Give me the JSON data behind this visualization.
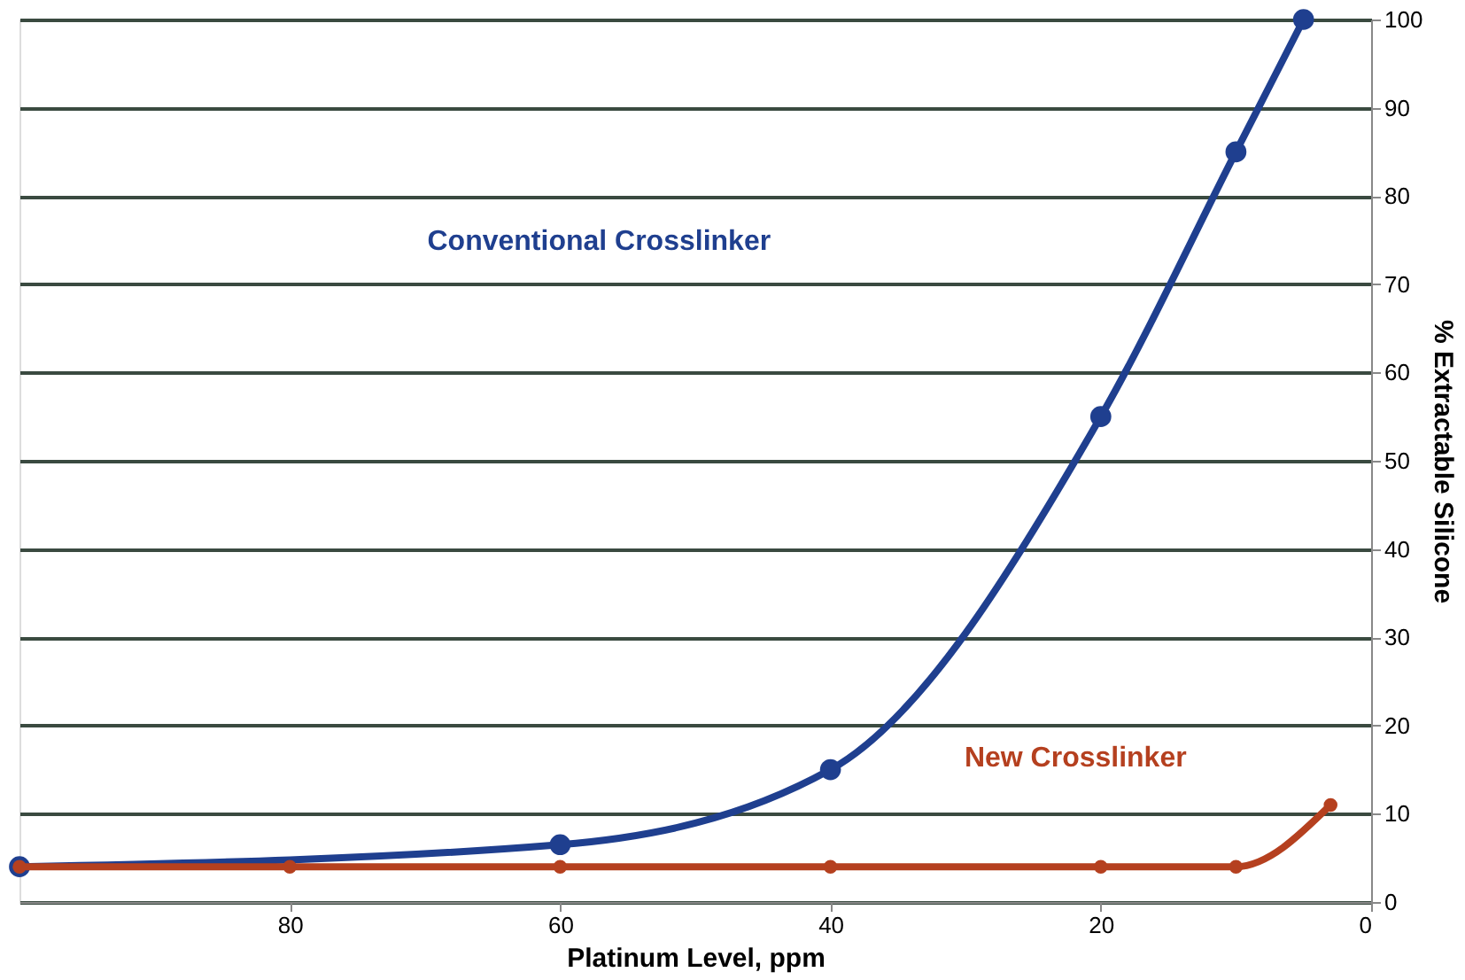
{
  "chart_data": {
    "type": "line",
    "xlabel": "Platinum Level, ppm",
    "ylabel": "% Extractable Silicone",
    "series": [
      {
        "name": "Conventional Crosslinker",
        "color": "#1f3f8f",
        "x": [
          100,
          60,
          40,
          20,
          10,
          5
        ],
        "values": [
          4,
          6.5,
          15,
          55,
          85,
          100
        ]
      },
      {
        "name": "New Crosslinker",
        "color": "#b5401f",
        "x": [
          100,
          80,
          60,
          40,
          20,
          10,
          3
        ],
        "values": [
          4,
          4,
          4,
          4,
          4,
          4,
          11
        ]
      }
    ],
    "xlim": [
      100,
      0
    ],
    "xticks": [
      80,
      60,
      40,
      20,
      0
    ],
    "ylim": [
      0,
      100
    ],
    "yticks": [
      0,
      10,
      20,
      30,
      40,
      50,
      60,
      70,
      80,
      90,
      100
    ],
    "grid": "y",
    "marker": "circle",
    "line_style": "solid"
  }
}
